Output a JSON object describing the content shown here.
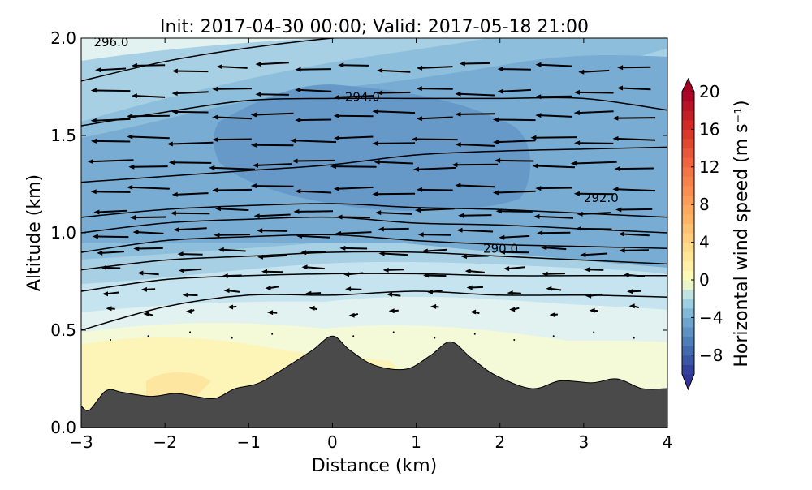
{
  "chart_data": {
    "type": "contour",
    "title": "Init: 2017-04-30 00:00; Valid: 2017-05-18 21:00",
    "xlabel": "Distance (km)",
    "ylabel": "Altitude (km)",
    "xlim": [
      -3,
      4
    ],
    "ylim": [
      0,
      2
    ],
    "xticks": [
      "−3",
      "−2",
      "−1",
      "0",
      "1",
      "2",
      "3",
      "4"
    ],
    "yticks": [
      "0.0",
      "0.5",
      "1.0",
      "1.5",
      "2.0"
    ],
    "colorbar": {
      "label": "Horizontal wind speed (m s⁻¹)",
      "range": [
        -10,
        20
      ],
      "ticks": [
        "20",
        "16",
        "12",
        "8",
        "4",
        "0",
        "−4",
        "−8"
      ],
      "tick_values": [
        20,
        16,
        12,
        8,
        4,
        0,
        -4,
        -8
      ],
      "extend": "both"
    },
    "contour_labels": [
      {
        "text": "296.0",
        "x": -2.85,
        "z": 1.97
      },
      {
        "text": "294.0",
        "x": 0.15,
        "z": 1.69
      },
      {
        "text": "292.0",
        "x": 3.0,
        "z": 1.17
      },
      {
        "text": "290.0",
        "x": 1.8,
        "z": 0.91
      }
    ],
    "isentrope_x": [
      -3,
      -2,
      -1,
      0,
      1,
      2,
      3,
      4
    ],
    "isentropes": [
      [
        0.5,
        0.62,
        0.68,
        0.68,
        0.7,
        0.68,
        0.68,
        0.67
      ],
      [
        0.7,
        0.76,
        0.78,
        0.79,
        0.79,
        0.78,
        0.78,
        0.78
      ],
      [
        0.81,
        0.86,
        0.88,
        0.9,
        0.9,
        0.88,
        0.86,
        0.84
      ],
      [
        0.9,
        0.96,
        0.98,
        0.99,
        0.96,
        0.94,
        0.93,
        0.92
      ],
      [
        1.0,
        1.05,
        1.07,
        1.08,
        1.05,
        1.04,
        1.02,
        1.0
      ],
      [
        1.08,
        1.12,
        1.14,
        1.15,
        1.13,
        1.12,
        1.1,
        1.08
      ],
      [
        1.26,
        1.29,
        1.32,
        1.35,
        1.4,
        1.42,
        1.43,
        1.44
      ],
      [
        1.55,
        1.62,
        1.68,
        1.69,
        1.69,
        1.69,
        1.69,
        1.63
      ],
      [
        1.78,
        1.88,
        1.95,
        2.0,
        2.03,
        2.05,
        2.05,
        2.05
      ]
    ],
    "terrain": {
      "x": [
        -3.0,
        -2.9,
        -2.7,
        -2.5,
        -2.17,
        -1.88,
        -1.64,
        -1.4,
        -1.16,
        -0.87,
        -0.48,
        -0.23,
        0.0,
        0.2,
        0.5,
        0.88,
        1.17,
        1.41,
        1.65,
        1.94,
        2.38,
        2.72,
        3.1,
        3.4,
        3.7,
        4.0
      ],
      "z": [
        0.11,
        0.09,
        0.19,
        0.18,
        0.16,
        0.175,
        0.16,
        0.15,
        0.2,
        0.23,
        0.33,
        0.4,
        0.47,
        0.4,
        0.32,
        0.3,
        0.37,
        0.44,
        0.36,
        0.27,
        0.2,
        0.24,
        0.23,
        0.25,
        0.2,
        0.2
      ]
    },
    "wind_bands": [
      {
        "level": -3,
        "color": "#a8d0e4"
      },
      {
        "level": -5,
        "color": "#8dbfdd"
      },
      {
        "level": -6,
        "color": "#78acd3"
      },
      {
        "level": -7,
        "color": "#6699c8"
      },
      {
        "level": -2,
        "color": "#c6e4ef"
      },
      {
        "level": -1,
        "color": "#e2f2f1"
      },
      {
        "level": 0,
        "color": "#f4f9d8"
      },
      {
        "level": 1,
        "color": "#fdf4b8"
      },
      {
        "level": 2,
        "color": "#fde6a0"
      }
    ],
    "wind_vectors": {
      "x": [
        -2.65,
        -2.2,
        -1.7,
        -1.2,
        -0.72,
        -0.23,
        0.25,
        0.73,
        1.22,
        1.7,
        2.17,
        2.64,
        3.12,
        3.6
      ],
      "z": [
        0.47,
        0.6,
        0.7,
        0.8,
        0.9,
        1.0,
        1.1,
        1.22,
        1.35,
        1.47,
        1.6,
        1.72,
        1.85
      ],
      "u": [
        -0.3,
        -1.5,
        -2.5,
        -3.5,
        -4.5,
        -5.5,
        -6,
        -6.5,
        -7,
        -7,
        -6.5,
        -6,
        -5.5
      ]
    }
  }
}
